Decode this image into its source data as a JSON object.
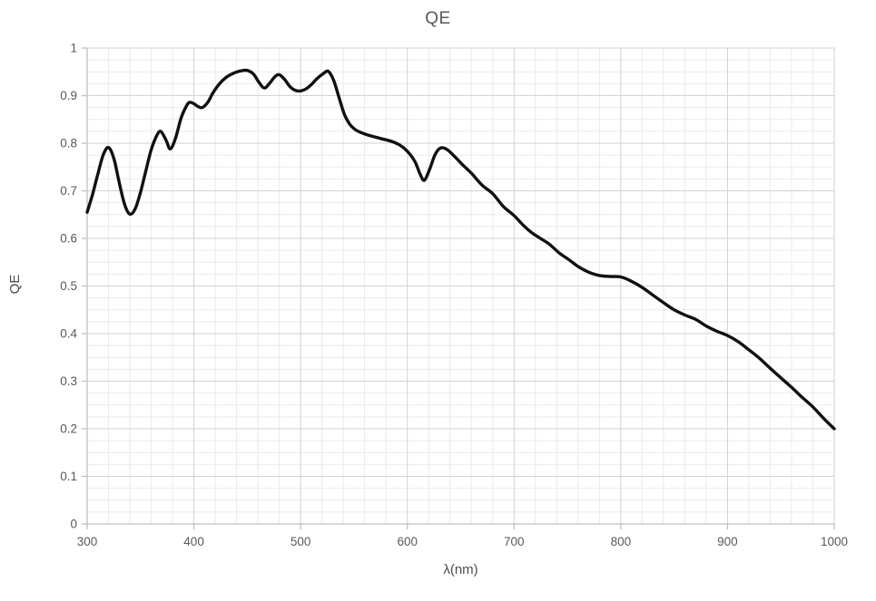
{
  "chart_data": {
    "type": "line",
    "title": "QE",
    "xlabel": "λ(nm)",
    "ylabel": "QE",
    "xlim": [
      300,
      1000
    ],
    "ylim": [
      0,
      1
    ],
    "x_major_step": 100,
    "x_minor_step": 20,
    "y_major_step": 0.1,
    "y_minor_step": 0.025,
    "x_tick_labels": [
      "300",
      "400",
      "500",
      "600",
      "700",
      "800",
      "900",
      "1000"
    ],
    "y_tick_labels": [
      "0",
      "0.1",
      "0.2",
      "0.3",
      "0.4",
      "0.5",
      "0.6",
      "0.7",
      "0.8",
      "0.9",
      "1"
    ],
    "grid": "major and minor, on",
    "legend": "none",
    "colors": {
      "line": "#111111",
      "axis": "#bfbfbf",
      "grid_major": "#d2d2d2",
      "grid_minor": "#ebebeb",
      "text": "#595959"
    },
    "series": [
      {
        "name": "QE",
        "points": [
          [
            300,
            0.655
          ],
          [
            305,
            0.692
          ],
          [
            310,
            0.735
          ],
          [
            315,
            0.775
          ],
          [
            320,
            0.791
          ],
          [
            325,
            0.768
          ],
          [
            330,
            0.718
          ],
          [
            335,
            0.672
          ],
          [
            340,
            0.651
          ],
          [
            345,
            0.662
          ],
          [
            350,
            0.697
          ],
          [
            355,
            0.742
          ],
          [
            360,
            0.786
          ],
          [
            365,
            0.815
          ],
          [
            369,
            0.825
          ],
          [
            374,
            0.806
          ],
          [
            378,
            0.788
          ],
          [
            383,
            0.812
          ],
          [
            388,
            0.853
          ],
          [
            393,
            0.878
          ],
          [
            396,
            0.886
          ],
          [
            400,
            0.883
          ],
          [
            404,
            0.877
          ],
          [
            408,
            0.875
          ],
          [
            413,
            0.886
          ],
          [
            418,
            0.906
          ],
          [
            424,
            0.925
          ],
          [
            430,
            0.938
          ],
          [
            437,
            0.947
          ],
          [
            444,
            0.952
          ],
          [
            450,
            0.953
          ],
          [
            456,
            0.945
          ],
          [
            461,
            0.928
          ],
          [
            466,
            0.916
          ],
          [
            471,
            0.926
          ],
          [
            476,
            0.94
          ],
          [
            480,
            0.944
          ],
          [
            485,
            0.934
          ],
          [
            490,
            0.919
          ],
          [
            495,
            0.911
          ],
          [
            500,
            0.91
          ],
          [
            505,
            0.914
          ],
          [
            510,
            0.923
          ],
          [
            515,
            0.935
          ],
          [
            521,
            0.946
          ],
          [
            526,
            0.951
          ],
          [
            531,
            0.932
          ],
          [
            536,
            0.896
          ],
          [
            541,
            0.861
          ],
          [
            546,
            0.84
          ],
          [
            551,
            0.829
          ],
          [
            556,
            0.823
          ],
          [
            565,
            0.816
          ],
          [
            575,
            0.81
          ],
          [
            585,
            0.804
          ],
          [
            593,
            0.796
          ],
          [
            600,
            0.783
          ],
          [
            607,
            0.762
          ],
          [
            612,
            0.735
          ],
          [
            616,
            0.722
          ],
          [
            621,
            0.746
          ],
          [
            626,
            0.776
          ],
          [
            631,
            0.79
          ],
          [
            637,
            0.787
          ],
          [
            644,
            0.773
          ],
          [
            652,
            0.754
          ],
          [
            660,
            0.737
          ],
          [
            670,
            0.712
          ],
          [
            680,
            0.694
          ],
          [
            690,
            0.667
          ],
          [
            700,
            0.648
          ],
          [
            708,
            0.629
          ],
          [
            716,
            0.613
          ],
          [
            724,
            0.601
          ],
          [
            733,
            0.588
          ],
          [
            742,
            0.57
          ],
          [
            751,
            0.556
          ],
          [
            760,
            0.541
          ],
          [
            770,
            0.529
          ],
          [
            780,
            0.522
          ],
          [
            790,
            0.52
          ],
          [
            800,
            0.519
          ],
          [
            810,
            0.51
          ],
          [
            820,
            0.497
          ],
          [
            830,
            0.481
          ],
          [
            840,
            0.465
          ],
          [
            850,
            0.45
          ],
          [
            860,
            0.439
          ],
          [
            870,
            0.43
          ],
          [
            880,
            0.416
          ],
          [
            890,
            0.405
          ],
          [
            900,
            0.396
          ],
          [
            910,
            0.383
          ],
          [
            920,
            0.366
          ],
          [
            930,
            0.348
          ],
          [
            940,
            0.327
          ],
          [
            950,
            0.307
          ],
          [
            960,
            0.287
          ],
          [
            970,
            0.266
          ],
          [
            980,
            0.246
          ],
          [
            990,
            0.222
          ],
          [
            1000,
            0.2
          ]
        ]
      }
    ]
  }
}
